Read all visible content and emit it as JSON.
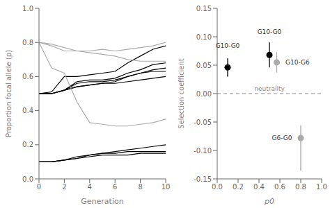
{
  "chart_data": [
    {
      "type": "line",
      "xlabel": "Generation",
      "ylabel": "Proportion focal allele (p)",
      "x": [
        0,
        1,
        2,
        3,
        4,
        5,
        6,
        7,
        8,
        9,
        10
      ],
      "xlim": [
        0,
        10
      ],
      "ylim": [
        0.0,
        1.0
      ],
      "xticks": [
        0,
        2,
        4,
        6,
        8,
        10
      ],
      "yticks": [
        {
          "value": 0.0,
          "label": "0.0"
        },
        0.2,
        0.4,
        0.6,
        0.8,
        {
          "value": 1.0,
          "label": "1.0"
        }
      ],
      "grid": false,
      "series": [
        {
          "color": "black",
          "values": [
            0.5,
            0.5,
            0.52,
            0.54,
            0.55,
            0.56,
            0.57,
            0.6,
            0.62,
            0.63,
            0.63
          ]
        },
        {
          "color": "black",
          "values": [
            0.5,
            0.5,
            0.52,
            0.56,
            0.57,
            0.57,
            0.58,
            0.6,
            0.62,
            0.64,
            0.65
          ]
        },
        {
          "color": "black",
          "values": [
            0.5,
            0.5,
            0.52,
            0.57,
            0.58,
            0.58,
            0.59,
            0.62,
            0.64,
            0.67,
            0.68
          ]
        },
        {
          "color": "black",
          "values": [
            0.5,
            0.51,
            0.6,
            0.6,
            0.61,
            0.62,
            0.63,
            0.68,
            0.72,
            0.76,
            0.78
          ]
        },
        {
          "color": "black",
          "values": [
            0.5,
            0.5,
            0.52,
            0.54,
            0.55,
            0.56,
            0.56,
            0.57,
            0.58,
            0.59,
            0.6
          ]
        },
        {
          "color": "black",
          "values": [
            0.1,
            0.1,
            0.11,
            0.12,
            0.14,
            0.15,
            0.15,
            0.16,
            0.16,
            0.16,
            0.16
          ]
        },
        {
          "color": "black",
          "values": [
            0.1,
            0.1,
            0.11,
            0.12,
            0.13,
            0.14,
            0.14,
            0.14,
            0.15,
            0.15,
            0.15
          ]
        },
        {
          "color": "black",
          "values": [
            0.1,
            0.1,
            0.11,
            0.13,
            0.14,
            0.15,
            0.16,
            0.17,
            0.18,
            0.19,
            0.2
          ]
        },
        {
          "color": "#aaaaaa",
          "values": [
            0.8,
            0.78,
            0.75,
            0.75,
            0.75,
            0.76,
            0.75,
            0.76,
            0.77,
            0.78,
            0.8
          ]
        },
        {
          "color": "#aaaaaa",
          "values": [
            0.8,
            0.65,
            0.62,
            0.45,
            0.33,
            0.32,
            0.31,
            0.31,
            0.32,
            0.33,
            0.35
          ]
        },
        {
          "color": "#aaaaaa",
          "values": [
            0.8,
            0.79,
            0.77,
            0.75,
            0.74,
            0.73,
            0.72,
            0.7,
            0.69,
            0.69,
            0.69
          ]
        }
      ]
    },
    {
      "type": "scatter",
      "xlabel": "p0",
      "ylabel": "Selection coefficient",
      "xlim": [
        0.0,
        1.0
      ],
      "ylim": [
        -0.15,
        0.15
      ],
      "xticks": [
        {
          "value": 0.0,
          "label": "0.0"
        },
        0.2,
        0.4,
        0.6,
        0.8,
        {
          "value": 1.0,
          "label": "1.0"
        }
      ],
      "yticks": [
        -0.15,
        {
          "value": -0.1,
          "label": "-0.10"
        },
        -0.05,
        {
          "value": 0.0,
          "label": "0.00"
        },
        0.05,
        {
          "value": 0.1,
          "label": "0.10"
        },
        0.15
      ],
      "grid": false,
      "marker": "circle",
      "x": [
        0.1,
        0.5,
        0.57,
        0.8
      ],
      "values": [
        0.046,
        0.068,
        0.055,
        -0.078
      ],
      "error_low": [
        0.016,
        0.022,
        0.018,
        0.058
      ],
      "error_high": [
        0.016,
        0.022,
        0.018,
        0.022
      ],
      "colors": [
        "black",
        "black",
        "#aaaaaa",
        "#aaaaaa"
      ],
      "labels": [
        "G10-G0",
        "G10-G0",
        "G10-G6",
        "G6-G0"
      ],
      "annotations": [
        {
          "text": "neutrality",
          "y": 0.0,
          "line_style": "dashed",
          "color": "#888888"
        }
      ]
    }
  ]
}
